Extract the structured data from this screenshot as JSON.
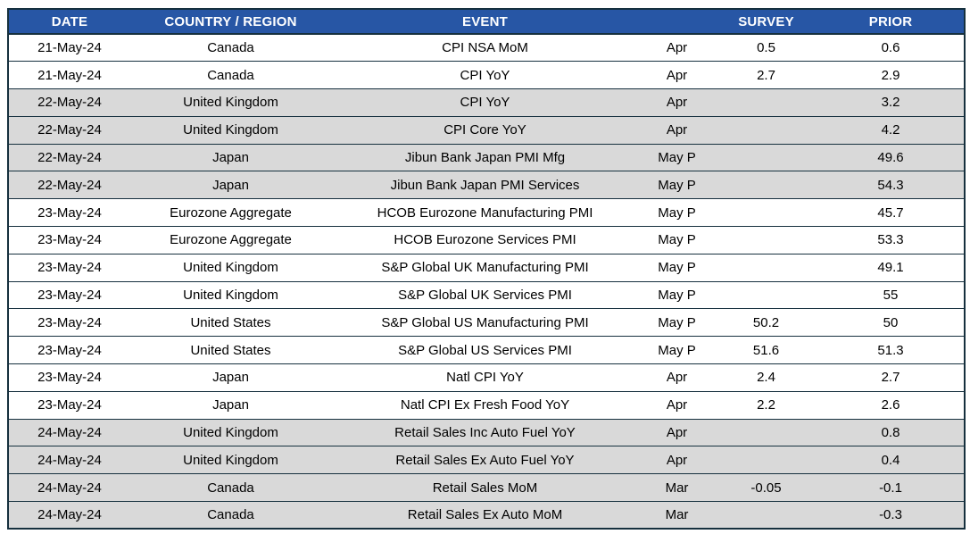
{
  "colors": {
    "header-bg": "#2756A5",
    "header-text": "#FFFFFF",
    "row-white": "#FFFFFF",
    "row-shaded": "#D9D9D9",
    "border": "#16303E",
    "text": "#000000",
    "page-bg": "#FFFFFF"
  },
  "table": {
    "columns": [
      {
        "key": "date",
        "label": "DATE"
      },
      {
        "key": "country",
        "label": "COUNTRY / REGION"
      },
      {
        "key": "event",
        "label": "EVENT"
      },
      {
        "key": "period",
        "label": ""
      },
      {
        "key": "survey",
        "label": "SURVEY"
      },
      {
        "key": "prior",
        "label": "PRIOR"
      }
    ],
    "rows": [
      {
        "date": "21-May-24",
        "country": "Canada",
        "event": "CPI NSA MoM",
        "period": "Apr",
        "survey": "0.5",
        "prior": "0.6",
        "shaded": false
      },
      {
        "date": "21-May-24",
        "country": "Canada",
        "event": "CPI YoY",
        "period": "Apr",
        "survey": "2.7",
        "prior": "2.9",
        "shaded": false
      },
      {
        "date": "22-May-24",
        "country": "United Kingdom",
        "event": "CPI YoY",
        "period": "Apr",
        "survey": "",
        "prior": "3.2",
        "shaded": true
      },
      {
        "date": "22-May-24",
        "country": "United Kingdom",
        "event": "CPI Core YoY",
        "period": "Apr",
        "survey": "",
        "prior": "4.2",
        "shaded": true
      },
      {
        "date": "22-May-24",
        "country": "Japan",
        "event": "Jibun Bank Japan PMI Mfg",
        "period": "May P",
        "survey": "",
        "prior": "49.6",
        "shaded": true
      },
      {
        "date": "22-May-24",
        "country": "Japan",
        "event": "Jibun Bank Japan PMI Services",
        "period": "May P",
        "survey": "",
        "prior": "54.3",
        "shaded": true
      },
      {
        "date": "23-May-24",
        "country": "Eurozone Aggregate",
        "event": "HCOB Eurozone Manufacturing PMI",
        "period": "May P",
        "survey": "",
        "prior": "45.7",
        "shaded": false
      },
      {
        "date": "23-May-24",
        "country": "Eurozone Aggregate",
        "event": "HCOB Eurozone Services PMI",
        "period": "May P",
        "survey": "",
        "prior": "53.3",
        "shaded": false
      },
      {
        "date": "23-May-24",
        "country": "United Kingdom",
        "event": "S&P Global UK Manufacturing PMI",
        "period": "May P",
        "survey": "",
        "prior": "49.1",
        "shaded": false
      },
      {
        "date": "23-May-24",
        "country": "United Kingdom",
        "event": "S&P Global UK Services PMI",
        "period": "May P",
        "survey": "",
        "prior": "55",
        "shaded": false
      },
      {
        "date": "23-May-24",
        "country": "United States",
        "event": "S&P Global US Manufacturing PMI",
        "period": "May P",
        "survey": "50.2",
        "prior": "50",
        "shaded": false
      },
      {
        "date": "23-May-24",
        "country": "United States",
        "event": "S&P Global US Services PMI",
        "period": "May P",
        "survey": "51.6",
        "prior": "51.3",
        "shaded": false
      },
      {
        "date": "23-May-24",
        "country": "Japan",
        "event": "Natl CPI YoY",
        "period": "Apr",
        "survey": "2.4",
        "prior": "2.7",
        "shaded": false
      },
      {
        "date": "23-May-24",
        "country": "Japan",
        "event": "Natl CPI Ex Fresh Food YoY",
        "period": "Apr",
        "survey": "2.2",
        "prior": "2.6",
        "shaded": false
      },
      {
        "date": "24-May-24",
        "country": "United Kingdom",
        "event": "Retail Sales Inc Auto Fuel YoY",
        "period": "Apr",
        "survey": "",
        "prior": "0.8",
        "shaded": true
      },
      {
        "date": "24-May-24",
        "country": "United Kingdom",
        "event": "Retail Sales Ex Auto Fuel YoY",
        "period": "Apr",
        "survey": "",
        "prior": "0.4",
        "shaded": true
      },
      {
        "date": "24-May-24",
        "country": "Canada",
        "event": "Retail Sales MoM",
        "period": "Mar",
        "survey": "-0.05",
        "prior": "-0.1",
        "shaded": true
      },
      {
        "date": "24-May-24",
        "country": "Canada",
        "event": "Retail Sales Ex Auto MoM",
        "period": "Mar",
        "survey": "",
        "prior": "-0.3",
        "shaded": true
      }
    ]
  },
  "chart_data": {
    "type": "table",
    "title": "",
    "columns": [
      "DATE",
      "COUNTRY / REGION",
      "EVENT",
      "",
      "SURVEY",
      "PRIOR"
    ],
    "rows": [
      [
        "21-May-24",
        "Canada",
        "CPI NSA MoM",
        "Apr",
        "0.5",
        "0.6"
      ],
      [
        "21-May-24",
        "Canada",
        "CPI YoY",
        "Apr",
        "2.7",
        "2.9"
      ],
      [
        "22-May-24",
        "United Kingdom",
        "CPI YoY",
        "Apr",
        "",
        "3.2"
      ],
      [
        "22-May-24",
        "United Kingdom",
        "CPI Core YoY",
        "Apr",
        "",
        "4.2"
      ],
      [
        "22-May-24",
        "Japan",
        "Jibun Bank Japan PMI Mfg",
        "May P",
        "",
        "49.6"
      ],
      [
        "22-May-24",
        "Japan",
        "Jibun Bank Japan PMI Services",
        "May P",
        "",
        "54.3"
      ],
      [
        "23-May-24",
        "Eurozone Aggregate",
        "HCOB Eurozone Manufacturing PMI",
        "May P",
        "",
        "45.7"
      ],
      [
        "23-May-24",
        "Eurozone Aggregate",
        "HCOB Eurozone Services PMI",
        "May P",
        "",
        "53.3"
      ],
      [
        "23-May-24",
        "United Kingdom",
        "S&P Global UK Manufacturing PMI",
        "May P",
        "",
        "49.1"
      ],
      [
        "23-May-24",
        "United Kingdom",
        "S&P Global UK Services PMI",
        "May P",
        "",
        "55"
      ],
      [
        "23-May-24",
        "United States",
        "S&P Global US Manufacturing PMI",
        "May P",
        "50.2",
        "50"
      ],
      [
        "23-May-24",
        "United States",
        "S&P Global US Services PMI",
        "May P",
        "51.6",
        "51.3"
      ],
      [
        "23-May-24",
        "Japan",
        "Natl CPI YoY",
        "Apr",
        "2.4",
        "2.7"
      ],
      [
        "23-May-24",
        "Japan",
        "Natl CPI Ex Fresh Food YoY",
        "Apr",
        "2.2",
        "2.6"
      ],
      [
        "24-May-24",
        "United Kingdom",
        "Retail Sales Inc Auto Fuel YoY",
        "Apr",
        "",
        "0.8"
      ],
      [
        "24-May-24",
        "United Kingdom",
        "Retail Sales Ex Auto Fuel YoY",
        "Apr",
        "",
        "0.4"
      ],
      [
        "24-May-24",
        "Canada",
        "Retail Sales MoM",
        "Mar",
        "-0.05",
        "-0.1"
      ],
      [
        "24-May-24",
        "Canada",
        "Retail Sales Ex Auto MoM",
        "Mar",
        "",
        "-0.3"
      ]
    ]
  }
}
